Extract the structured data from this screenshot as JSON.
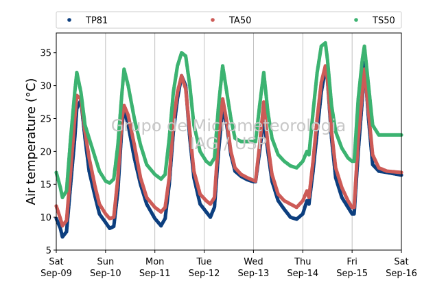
{
  "chart_data": {
    "type": "scatter",
    "ylabel": "Air temperature (°C)",
    "xlabel": "",
    "ylim": [
      5,
      38
    ],
    "yticks": [
      5,
      10,
      15,
      20,
      25,
      30,
      35
    ],
    "xlim": [
      "2017-09-09T00:00",
      "2017-09-16T00:00"
    ],
    "x_ticks": [
      {
        "day": "Sat",
        "date": "Sep-09"
      },
      {
        "day": "Sun",
        "date": "Sep-10"
      },
      {
        "day": "Mon",
        "date": "Sep-11"
      },
      {
        "day": "Tue",
        "date": "Sep-12"
      },
      {
        "day": "Wed",
        "date": "Sep-13"
      },
      {
        "day": "Thu",
        "date": "Sep-14"
      },
      {
        "day": "Fri",
        "date": "Sep-15"
      },
      {
        "day": "Sat",
        "date": "Sep-16"
      }
    ],
    "grid": "vertical",
    "legend_position": "top",
    "watermark": [
      "Grupo de Micrometeorologia",
      "IAG / USP"
    ],
    "series": [
      {
        "name": "TP81",
        "color": "#0d3f7f",
        "points": [
          [
            "2017-09-09T00:00",
            9.8
          ],
          [
            "2017-09-09T02:00",
            8.3
          ],
          [
            "2017-09-09T03:00",
            7.0
          ],
          [
            "2017-09-09T05:00",
            7.8
          ],
          [
            "2017-09-09T07:00",
            15.0
          ],
          [
            "2017-09-09T09:00",
            22.0
          ],
          [
            "2017-09-09T10:00",
            26.5
          ],
          [
            "2017-09-09T12:00",
            27.8
          ],
          [
            "2017-09-09T14:00",
            22.0
          ],
          [
            "2017-09-09T16:00",
            17.0
          ],
          [
            "2017-09-09T19:00",
            13.0
          ],
          [
            "2017-09-09T21:00",
            10.5
          ],
          [
            "2017-09-10T00:00",
            9.2
          ],
          [
            "2017-09-10T02:00",
            8.3
          ],
          [
            "2017-09-10T04:00",
            8.6
          ],
          [
            "2017-09-10T06:00",
            14.0
          ],
          [
            "2017-09-10T08:00",
            24.0
          ],
          [
            "2017-09-10T09:00",
            26.5
          ],
          [
            "2017-09-10T11:00",
            24.0
          ],
          [
            "2017-09-10T14:00",
            19.0
          ],
          [
            "2017-09-10T17:00",
            15.0
          ],
          [
            "2017-09-10T20:00",
            12.0
          ],
          [
            "2017-09-11T00:00",
            9.8
          ],
          [
            "2017-09-11T03:00",
            8.7
          ],
          [
            "2017-09-11T05:00",
            9.8
          ],
          [
            "2017-09-11T07:00",
            15.0
          ],
          [
            "2017-09-11T09:00",
            23.0
          ],
          [
            "2017-09-11T11:00",
            28.0
          ],
          [
            "2017-09-11T13:00",
            31.5
          ],
          [
            "2017-09-11T15:00",
            30.0
          ],
          [
            "2017-09-11T17:00",
            22.0
          ],
          [
            "2017-09-11T19:00",
            16.0
          ],
          [
            "2017-09-11T22:00",
            12.0
          ],
          [
            "2017-09-12T01:00",
            10.8
          ],
          [
            "2017-09-12T03:00",
            10.0
          ],
          [
            "2017-09-12T05:00",
            11.5
          ],
          [
            "2017-09-12T07:00",
            20.0
          ],
          [
            "2017-09-12T09:00",
            26.5
          ],
          [
            "2017-09-12T11:00",
            24.0
          ],
          [
            "2017-09-12T13:00",
            19.5
          ],
          [
            "2017-09-12T15:00",
            17.0
          ],
          [
            "2017-09-12T18:00",
            16.2
          ],
          [
            "2017-09-12T21:00",
            15.7
          ],
          [
            "2017-09-13T00:00",
            15.4
          ],
          [
            "2017-09-13T01:00",
            15.4
          ],
          [
            "2017-09-13T03:00",
            20.0
          ],
          [
            "2017-09-13T05:00",
            25.0
          ],
          [
            "2017-09-13T07:00",
            20.0
          ],
          [
            "2017-09-13T09:00",
            15.5
          ],
          [
            "2017-09-13T12:00",
            12.5
          ],
          [
            "2017-09-13T15:00",
            11.2
          ],
          [
            "2017-09-13T18:00",
            10.0
          ],
          [
            "2017-09-13T21:00",
            9.7
          ],
          [
            "2017-09-14T00:00",
            10.5
          ],
          [
            "2017-09-14T02:00",
            12.5
          ],
          [
            "2017-09-14T03:00",
            12.0
          ],
          [
            "2017-09-14T05:00",
            17.0
          ],
          [
            "2017-09-14T07:00",
            23.0
          ],
          [
            "2017-09-14T09:00",
            29.0
          ],
          [
            "2017-09-14T11:00",
            32.5
          ],
          [
            "2017-09-14T12:00",
            31.0
          ],
          [
            "2017-09-14T14:00",
            22.0
          ],
          [
            "2017-09-14T16:00",
            16.0
          ],
          [
            "2017-09-14T19:00",
            13.0
          ],
          [
            "2017-09-14T22:00",
            11.5
          ],
          [
            "2017-09-15T00:00",
            10.5
          ],
          [
            "2017-09-15T01:00",
            10.5
          ],
          [
            "2017-09-15T03:00",
            20.0
          ],
          [
            "2017-09-15T05:00",
            28.0
          ],
          [
            "2017-09-15T06:00",
            33.5
          ],
          [
            "2017-09-15T08:00",
            25.0
          ],
          [
            "2017-09-15T10:00",
            18.0
          ],
          [
            "2017-09-15T13:00",
            17.0
          ],
          [
            "2017-09-15T17:00",
            16.8
          ],
          [
            "2017-09-16T00:00",
            16.4
          ]
        ]
      },
      {
        "name": "TA50",
        "color": "#cd5b57",
        "points": [
          [
            "2017-09-09T00:00",
            11.7
          ],
          [
            "2017-09-09T02:00",
            9.8
          ],
          [
            "2017-09-09T03:00",
            8.7
          ],
          [
            "2017-09-09T05:00",
            9.5
          ],
          [
            "2017-09-09T07:00",
            17.0
          ],
          [
            "2017-09-09T09:00",
            25.0
          ],
          [
            "2017-09-09T10:00",
            28.5
          ],
          [
            "2017-09-09T12:00",
            28.0
          ],
          [
            "2017-09-09T14:00",
            23.0
          ],
          [
            "2017-09-09T16:00",
            19.0
          ],
          [
            "2017-09-09T19:00",
            14.5
          ],
          [
            "2017-09-09T21:00",
            12.0
          ],
          [
            "2017-09-10T00:00",
            10.5
          ],
          [
            "2017-09-10T02:00",
            9.8
          ],
          [
            "2017-09-10T04:00",
            10.0
          ],
          [
            "2017-09-10T06:00",
            16.0
          ],
          [
            "2017-09-10T08:00",
            25.0
          ],
          [
            "2017-09-10T09:00",
            27.0
          ],
          [
            "2017-09-10T11:00",
            25.5
          ],
          [
            "2017-09-10T14:00",
            21.0
          ],
          [
            "2017-09-10T17:00",
            16.0
          ],
          [
            "2017-09-10T20:00",
            13.0
          ],
          [
            "2017-09-11T00:00",
            11.5
          ],
          [
            "2017-09-11T03:00",
            10.8
          ],
          [
            "2017-09-11T05:00",
            11.5
          ],
          [
            "2017-09-11T07:00",
            16.0
          ],
          [
            "2017-09-11T09:00",
            24.5
          ],
          [
            "2017-09-11T11:00",
            29.0
          ],
          [
            "2017-09-11T13:00",
            31.5
          ],
          [
            "2017-09-11T15:00",
            29.5
          ],
          [
            "2017-09-11T17:00",
            23.0
          ],
          [
            "2017-09-11T19:00",
            17.0
          ],
          [
            "2017-09-11T22:00",
            13.5
          ],
          [
            "2017-09-12T01:00",
            12.5
          ],
          [
            "2017-09-12T03:00",
            12.0
          ],
          [
            "2017-09-12T05:00",
            13.0
          ],
          [
            "2017-09-12T07:00",
            22.0
          ],
          [
            "2017-09-12T09:00",
            28.0
          ],
          [
            "2017-09-12T11:00",
            24.5
          ],
          [
            "2017-09-12T13:00",
            20.0
          ],
          [
            "2017-09-12T15:00",
            17.5
          ],
          [
            "2017-09-12T18:00",
            16.5
          ],
          [
            "2017-09-12T21:00",
            16.0
          ],
          [
            "2017-09-13T00:00",
            15.6
          ],
          [
            "2017-09-13T01:00",
            15.5
          ],
          [
            "2017-09-13T03:00",
            21.0
          ],
          [
            "2017-09-13T05:00",
            27.5
          ],
          [
            "2017-09-13T07:00",
            21.0
          ],
          [
            "2017-09-13T09:00",
            16.5
          ],
          [
            "2017-09-13T12:00",
            13.5
          ],
          [
            "2017-09-13T15:00",
            12.5
          ],
          [
            "2017-09-13T18:00",
            12.0
          ],
          [
            "2017-09-13T21:00",
            11.5
          ],
          [
            "2017-09-14T00:00",
            12.5
          ],
          [
            "2017-09-14T02:00",
            14.0
          ],
          [
            "2017-09-14T03:00",
            13.0
          ],
          [
            "2017-09-14T05:00",
            18.5
          ],
          [
            "2017-09-14T07:00",
            25.0
          ],
          [
            "2017-09-14T09:00",
            30.5
          ],
          [
            "2017-09-14T11:00",
            33.0
          ],
          [
            "2017-09-14T12:00",
            31.0
          ],
          [
            "2017-09-14T14:00",
            23.0
          ],
          [
            "2017-09-14T16:00",
            17.5
          ],
          [
            "2017-09-14T19:00",
            14.5
          ],
          [
            "2017-09-14T22:00",
            12.5
          ],
          [
            "2017-09-15T00:00",
            11.5
          ],
          [
            "2017-09-15T01:00",
            11.5
          ],
          [
            "2017-09-15T03:00",
            22.0
          ],
          [
            "2017-09-15T05:00",
            29.0
          ],
          [
            "2017-09-15T06:00",
            32.5
          ],
          [
            "2017-09-15T08:00",
            26.0
          ],
          [
            "2017-09-15T10:00",
            19.5
          ],
          [
            "2017-09-15T13:00",
            17.5
          ],
          [
            "2017-09-15T17:00",
            17.0
          ],
          [
            "2017-09-16T00:00",
            16.8
          ]
        ]
      },
      {
        "name": "TS50",
        "color": "#3cb371",
        "points": [
          [
            "2017-09-09T00:00",
            16.8
          ],
          [
            "2017-09-09T02:00",
            14.5
          ],
          [
            "2017-09-09T03:00",
            13.0
          ],
          [
            "2017-09-09T05:00",
            14.0
          ],
          [
            "2017-09-09T07:00",
            22.0
          ],
          [
            "2017-09-09T09:00",
            29.0
          ],
          [
            "2017-09-09T10:00",
            32.0
          ],
          [
            "2017-09-09T12:00",
            29.0
          ],
          [
            "2017-09-09T14:00",
            24.0
          ],
          [
            "2017-09-09T16:00",
            22.0
          ],
          [
            "2017-09-09T19:00",
            19.0
          ],
          [
            "2017-09-09T21:00",
            17.0
          ],
          [
            "2017-09-10T00:00",
            15.5
          ],
          [
            "2017-09-10T02:00",
            15.2
          ],
          [
            "2017-09-10T04:00",
            15.8
          ],
          [
            "2017-09-10T06:00",
            21.0
          ],
          [
            "2017-09-10T08:00",
            29.0
          ],
          [
            "2017-09-10T09:00",
            32.5
          ],
          [
            "2017-09-10T11:00",
            30.0
          ],
          [
            "2017-09-10T14:00",
            25.0
          ],
          [
            "2017-09-10T17:00",
            21.0
          ],
          [
            "2017-09-10T20:00",
            18.0
          ],
          [
            "2017-09-11T00:00",
            16.5
          ],
          [
            "2017-09-11T03:00",
            15.8
          ],
          [
            "2017-09-11T05:00",
            16.5
          ],
          [
            "2017-09-11T07:00",
            22.0
          ],
          [
            "2017-09-11T09:00",
            29.0
          ],
          [
            "2017-09-11T11:00",
            33.0
          ],
          [
            "2017-09-11T13:00",
            35.0
          ],
          [
            "2017-09-11T15:00",
            34.5
          ],
          [
            "2017-09-11T17:00",
            30.0
          ],
          [
            "2017-09-11T19:00",
            24.0
          ],
          [
            "2017-09-11T22:00",
            20.0
          ],
          [
            "2017-09-12T01:00",
            18.5
          ],
          [
            "2017-09-12T03:00",
            18.0
          ],
          [
            "2017-09-12T05:00",
            19.0
          ],
          [
            "2017-09-12T07:00",
            27.0
          ],
          [
            "2017-09-12T09:00",
            33.0
          ],
          [
            "2017-09-12T11:00",
            29.0
          ],
          [
            "2017-09-12T13:00",
            25.0
          ],
          [
            "2017-09-12T15:00",
            22.0
          ],
          [
            "2017-09-12T18:00",
            21.5
          ],
          [
            "2017-09-12T21:00",
            21.5
          ],
          [
            "2017-09-13T00:00",
            21.5
          ],
          [
            "2017-09-13T01:00",
            21.5
          ],
          [
            "2017-09-13T03:00",
            27.0
          ],
          [
            "2017-09-13T05:00",
            32.0
          ],
          [
            "2017-09-13T07:00",
            26.0
          ],
          [
            "2017-09-13T09:00",
            22.0
          ],
          [
            "2017-09-13T12:00",
            19.5
          ],
          [
            "2017-09-13T15:00",
            18.5
          ],
          [
            "2017-09-13T18:00",
            17.8
          ],
          [
            "2017-09-13T21:00",
            17.5
          ],
          [
            "2017-09-14T00:00",
            18.5
          ],
          [
            "2017-09-14T02:00",
            20.0
          ],
          [
            "2017-09-14T03:00",
            19.5
          ],
          [
            "2017-09-14T05:00",
            26.0
          ],
          [
            "2017-09-14T07:00",
            32.0
          ],
          [
            "2017-09-14T09:00",
            36.0
          ],
          [
            "2017-09-14T11:00",
            36.5
          ],
          [
            "2017-09-14T12:00",
            34.0
          ],
          [
            "2017-09-14T14:00",
            27.0
          ],
          [
            "2017-09-14T16:00",
            23.0
          ],
          [
            "2017-09-14T19:00",
            20.5
          ],
          [
            "2017-09-14T22:00",
            19.0
          ],
          [
            "2017-09-15T00:00",
            18.5
          ],
          [
            "2017-09-15T01:00",
            18.5
          ],
          [
            "2017-09-15T03:00",
            28.0
          ],
          [
            "2017-09-15T05:00",
            34.0
          ],
          [
            "2017-09-15T06:00",
            36.0
          ],
          [
            "2017-09-15T08:00",
            30.0
          ],
          [
            "2017-09-15T10:00",
            24.0
          ],
          [
            "2017-09-15T13:00",
            22.5
          ],
          [
            "2017-09-15T17:00",
            22.5
          ],
          [
            "2017-09-16T00:00",
            22.5
          ]
        ]
      }
    ]
  }
}
